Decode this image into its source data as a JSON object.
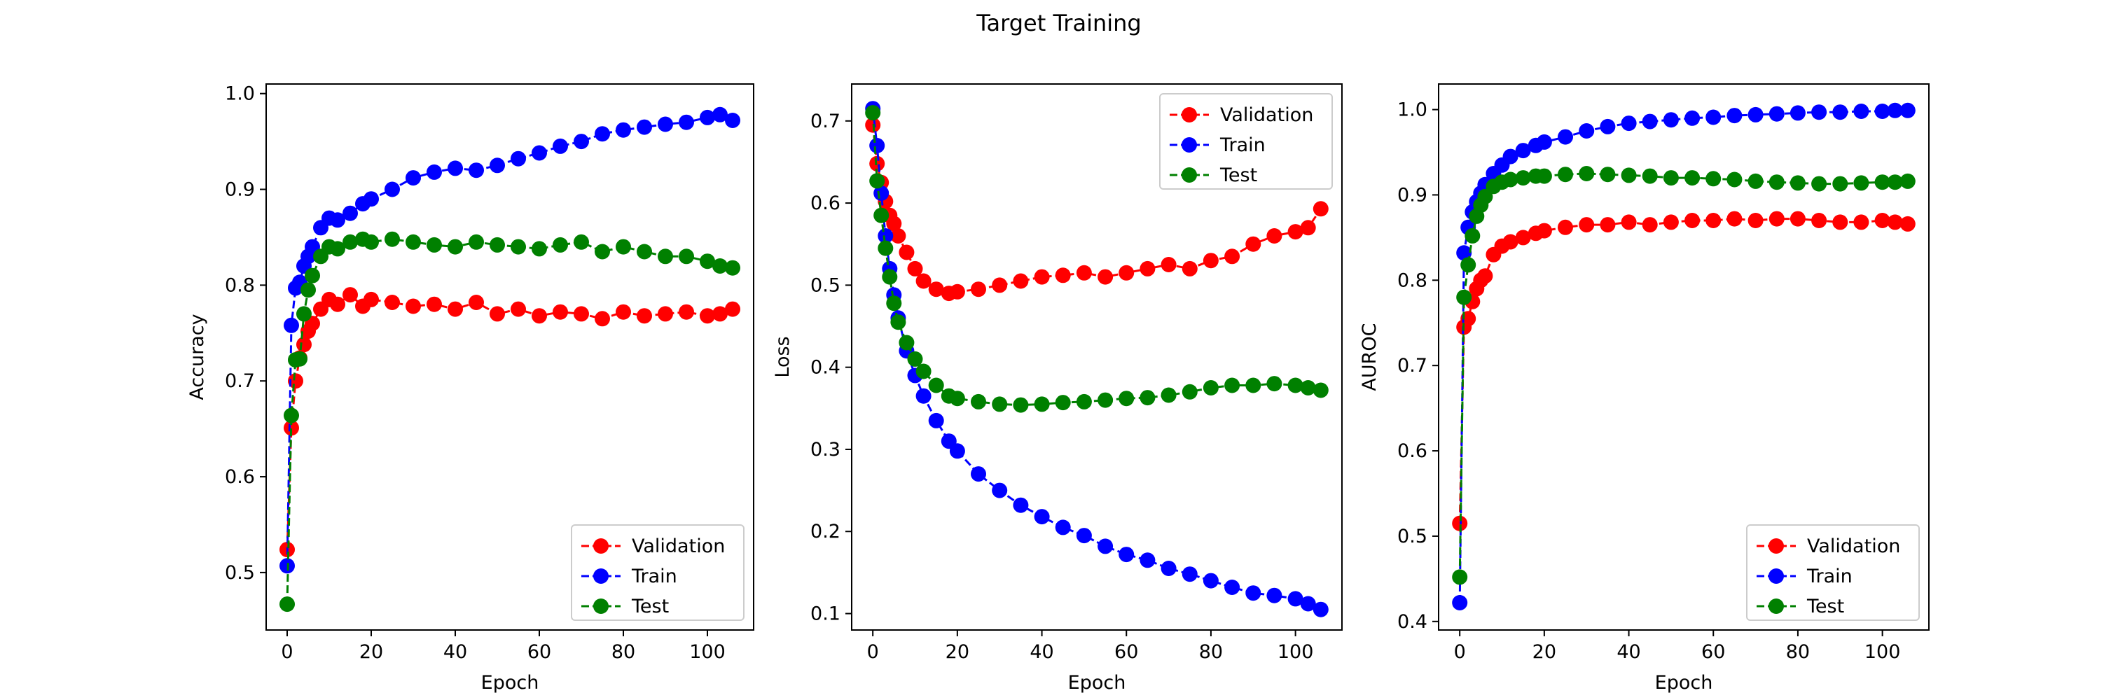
{
  "figure": {
    "suptitle": "Target Training"
  },
  "colors": {
    "Validation": "#ff0000",
    "Train": "#0000ff",
    "Test": "#008000"
  },
  "chart_data": [
    {
      "type": "line",
      "title": "",
      "xlabel": "Epoch",
      "ylabel": "Accuracy",
      "xlim": [
        -5,
        111
      ],
      "ylim": [
        0.44,
        1.01
      ],
      "xticks": [
        0,
        20,
        40,
        60,
        80,
        100
      ],
      "yticks": [
        0.5,
        0.6,
        0.7,
        0.8,
        0.9,
        1.0
      ],
      "ytick_labels": [
        "0.5",
        "0.6",
        "0.7",
        "0.8",
        "0.9",
        "1.0"
      ],
      "legend_position": "lower-right",
      "marker": "circle",
      "linestyle": "dashed",
      "x": [
        0,
        1,
        2,
        3,
        4,
        5,
        6,
        8,
        10,
        12,
        15,
        18,
        20,
        25,
        30,
        35,
        40,
        45,
        50,
        55,
        60,
        65,
        70,
        75,
        80,
        85,
        90,
        95,
        100,
        103,
        106
      ],
      "series": [
        {
          "name": "Validation",
          "color": "#ff0000",
          "values": [
            0.524,
            0.651,
            0.7,
            0.724,
            0.738,
            0.752,
            0.76,
            0.775,
            0.785,
            0.78,
            0.79,
            0.778,
            0.785,
            0.782,
            0.778,
            0.78,
            0.775,
            0.782,
            0.77,
            0.775,
            0.768,
            0.772,
            0.77,
            0.765,
            0.772,
            0.768,
            0.77,
            0.772,
            0.768,
            0.77,
            0.775
          ]
        },
        {
          "name": "Train",
          "color": "#0000ff",
          "values": [
            0.507,
            0.758,
            0.797,
            0.803,
            0.82,
            0.83,
            0.84,
            0.86,
            0.87,
            0.868,
            0.875,
            0.885,
            0.89,
            0.9,
            0.912,
            0.918,
            0.922,
            0.92,
            0.925,
            0.932,
            0.938,
            0.945,
            0.95,
            0.958,
            0.962,
            0.965,
            0.968,
            0.97,
            0.975,
            0.978,
            0.972
          ]
        },
        {
          "name": "Test",
          "color": "#008000",
          "values": [
            0.467,
            0.664,
            0.722,
            0.723,
            0.77,
            0.795,
            0.81,
            0.83,
            0.84,
            0.838,
            0.845,
            0.848,
            0.845,
            0.848,
            0.845,
            0.842,
            0.84,
            0.845,
            0.842,
            0.84,
            0.838,
            0.842,
            0.845,
            0.835,
            0.84,
            0.835,
            0.83,
            0.83,
            0.825,
            0.82,
            0.818
          ]
        }
      ]
    },
    {
      "type": "line",
      "title": "",
      "xlabel": "Epoch",
      "ylabel": "Loss",
      "xlim": [
        -5,
        111
      ],
      "ylim": [
        0.08,
        0.745
      ],
      "xticks": [
        0,
        20,
        40,
        60,
        80,
        100
      ],
      "yticks": [
        0.1,
        0.2,
        0.3,
        0.4,
        0.5,
        0.6,
        0.7
      ],
      "ytick_labels": [
        "0.1",
        "0.2",
        "0.3",
        "0.4",
        "0.5",
        "0.6",
        "0.7"
      ],
      "legend_position": "upper-right",
      "marker": "circle",
      "linestyle": "dashed",
      "x": [
        0,
        1,
        2,
        3,
        4,
        5,
        6,
        8,
        10,
        12,
        15,
        18,
        20,
        25,
        30,
        35,
        40,
        45,
        50,
        55,
        60,
        65,
        70,
        75,
        80,
        85,
        90,
        95,
        100,
        103,
        106
      ],
      "series": [
        {
          "name": "Validation",
          "color": "#ff0000",
          "values": [
            0.695,
            0.648,
            0.625,
            0.602,
            0.585,
            0.575,
            0.56,
            0.54,
            0.52,
            0.505,
            0.495,
            0.49,
            0.492,
            0.495,
            0.5,
            0.505,
            0.51,
            0.512,
            0.515,
            0.51,
            0.515,
            0.52,
            0.525,
            0.52,
            0.53,
            0.535,
            0.55,
            0.56,
            0.565,
            0.57,
            0.593
          ]
        },
        {
          "name": "Train",
          "color": "#0000ff",
          "values": [
            0.715,
            0.67,
            0.612,
            0.56,
            0.52,
            0.488,
            0.46,
            0.42,
            0.39,
            0.365,
            0.335,
            0.31,
            0.298,
            0.27,
            0.25,
            0.232,
            0.218,
            0.205,
            0.195,
            0.182,
            0.172,
            0.165,
            0.155,
            0.148,
            0.14,
            0.132,
            0.125,
            0.122,
            0.118,
            0.112,
            0.105
          ]
        },
        {
          "name": "Test",
          "color": "#008000",
          "values": [
            0.71,
            0.627,
            0.585,
            0.545,
            0.51,
            0.478,
            0.455,
            0.43,
            0.41,
            0.395,
            0.378,
            0.365,
            0.362,
            0.358,
            0.355,
            0.354,
            0.355,
            0.357,
            0.358,
            0.36,
            0.362,
            0.363,
            0.366,
            0.37,
            0.375,
            0.378,
            0.378,
            0.38,
            0.378,
            0.375,
            0.372
          ]
        }
      ]
    },
    {
      "type": "line",
      "title": "",
      "xlabel": "Epoch",
      "ylabel": "AUROC",
      "xlim": [
        -5,
        111
      ],
      "ylim": [
        0.39,
        1.03
      ],
      "xticks": [
        0,
        20,
        40,
        60,
        80,
        100
      ],
      "yticks": [
        0.4,
        0.5,
        0.6,
        0.7,
        0.8,
        0.9,
        1.0
      ],
      "ytick_labels": [
        "0.4",
        "0.5",
        "0.6",
        "0.7",
        "0.8",
        "0.9",
        "1.0"
      ],
      "legend_position": "lower-right",
      "marker": "circle",
      "linestyle": "dashed",
      "x": [
        0,
        1,
        2,
        3,
        4,
        5,
        6,
        8,
        10,
        12,
        15,
        18,
        20,
        25,
        30,
        35,
        40,
        45,
        50,
        55,
        60,
        65,
        70,
        75,
        80,
        85,
        90,
        95,
        100,
        103,
        106
      ],
      "series": [
        {
          "name": "Validation",
          "color": "#ff0000",
          "values": [
            0.515,
            0.745,
            0.755,
            0.775,
            0.79,
            0.8,
            0.805,
            0.83,
            0.84,
            0.845,
            0.85,
            0.855,
            0.858,
            0.862,
            0.865,
            0.865,
            0.868,
            0.865,
            0.868,
            0.87,
            0.87,
            0.872,
            0.87,
            0.872,
            0.872,
            0.87,
            0.868,
            0.868,
            0.87,
            0.868,
            0.866
          ]
        },
        {
          "name": "Train",
          "color": "#0000ff",
          "values": [
            0.422,
            0.832,
            0.862,
            0.88,
            0.892,
            0.902,
            0.912,
            0.925,
            0.935,
            0.945,
            0.952,
            0.958,
            0.962,
            0.968,
            0.975,
            0.98,
            0.984,
            0.986,
            0.988,
            0.99,
            0.991,
            0.993,
            0.994,
            0.995,
            0.996,
            0.997,
            0.997,
            0.998,
            0.998,
            0.999,
            0.999
          ]
        },
        {
          "name": "Test",
          "color": "#008000",
          "values": [
            0.452,
            0.78,
            0.818,
            0.852,
            0.875,
            0.888,
            0.898,
            0.91,
            0.915,
            0.918,
            0.92,
            0.922,
            0.922,
            0.924,
            0.925,
            0.924,
            0.923,
            0.922,
            0.92,
            0.92,
            0.919,
            0.918,
            0.916,
            0.915,
            0.914,
            0.913,
            0.913,
            0.914,
            0.915,
            0.915,
            0.916
          ]
        }
      ]
    }
  ]
}
